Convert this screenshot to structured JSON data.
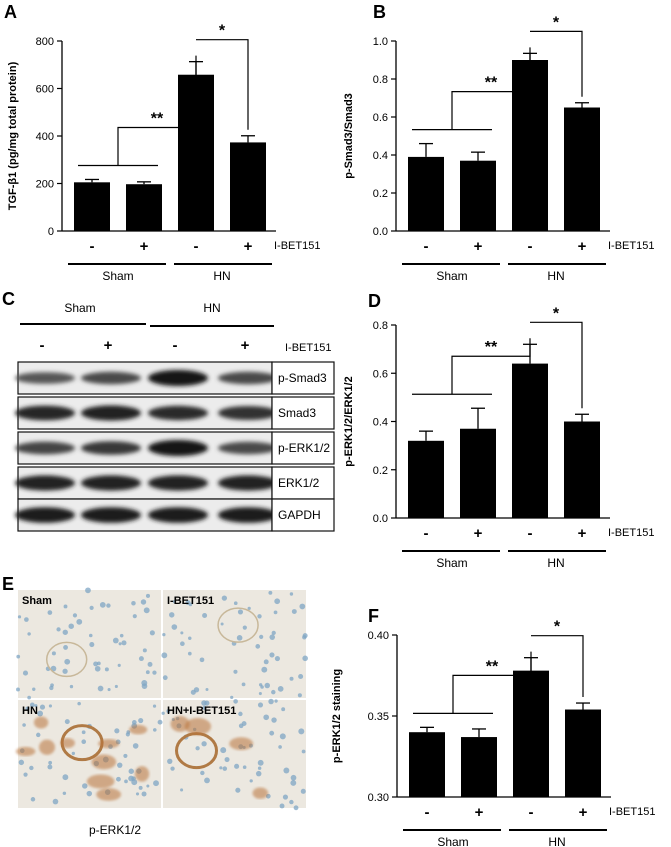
{
  "colors": {
    "bar": "#000000",
    "axis": "#000000",
    "background": "#ffffff"
  },
  "group_labels": [
    "Sham",
    "HN"
  ],
  "treatment_label": "I-BET151",
  "treatment_signs": [
    "-",
    "+",
    "-",
    "+"
  ],
  "chart_data": [
    {
      "panel": "A",
      "type": "bar",
      "ylabel": "TGF-β1 (pg/mg total protein)",
      "ylim": [
        0,
        800
      ],
      "yticks": [
        0,
        200,
        400,
        600,
        800
      ],
      "values": [
        205,
        197,
        658,
        373
      ],
      "errors": [
        12,
        10,
        55,
        28
      ],
      "annotations": [
        "**",
        "*"
      ]
    },
    {
      "panel": "B",
      "type": "bar",
      "ylabel": "p-Smad3/Smad3",
      "ylim": [
        0,
        1.0
      ],
      "yticks": [
        "0.0",
        "0.2",
        "0.4",
        "0.6",
        "0.8",
        "1.0"
      ],
      "values": [
        0.39,
        0.37,
        0.9,
        0.65
      ],
      "errors": [
        0.07,
        0.045,
        0.035,
        0.025
      ],
      "annotations": [
        "**",
        "*"
      ]
    },
    {
      "panel": "D",
      "type": "bar",
      "ylabel": "p-ERK1/2/ERK1/2",
      "ylim": [
        0,
        0.8
      ],
      "yticks": [
        "0.0",
        "0.2",
        "0.4",
        "0.6",
        "0.8"
      ],
      "values": [
        0.32,
        0.37,
        0.64,
        0.4
      ],
      "errors": [
        0.04,
        0.085,
        0.08,
        0.03
      ],
      "annotations": [
        "**",
        "*"
      ]
    },
    {
      "panel": "F",
      "type": "bar",
      "ylabel": "p-ERK1/2 staining",
      "ylim": [
        0.3,
        0.4
      ],
      "yticks": [
        "0.30",
        "0.35",
        "0.40"
      ],
      "values": [
        0.34,
        0.337,
        0.378,
        0.354
      ],
      "errors": [
        0.003,
        0.005,
        0.008,
        0.004
      ],
      "annotations": [
        "**",
        "*"
      ]
    }
  ],
  "blot": {
    "panel": "C",
    "groups": [
      "Sham",
      "HN"
    ],
    "signs": [
      "-",
      "+",
      "-",
      "+"
    ],
    "treatment": "I-BET151",
    "rows": [
      "p-Smad3",
      "Smad3",
      "p-ERK1/2",
      "ERK1/2",
      "GAPDH"
    ]
  },
  "ihc": {
    "panel": "E",
    "images": [
      "Sham",
      "I-BET151",
      "HN",
      "HN+I-BET151"
    ],
    "caption": "p-ERK1/2"
  }
}
